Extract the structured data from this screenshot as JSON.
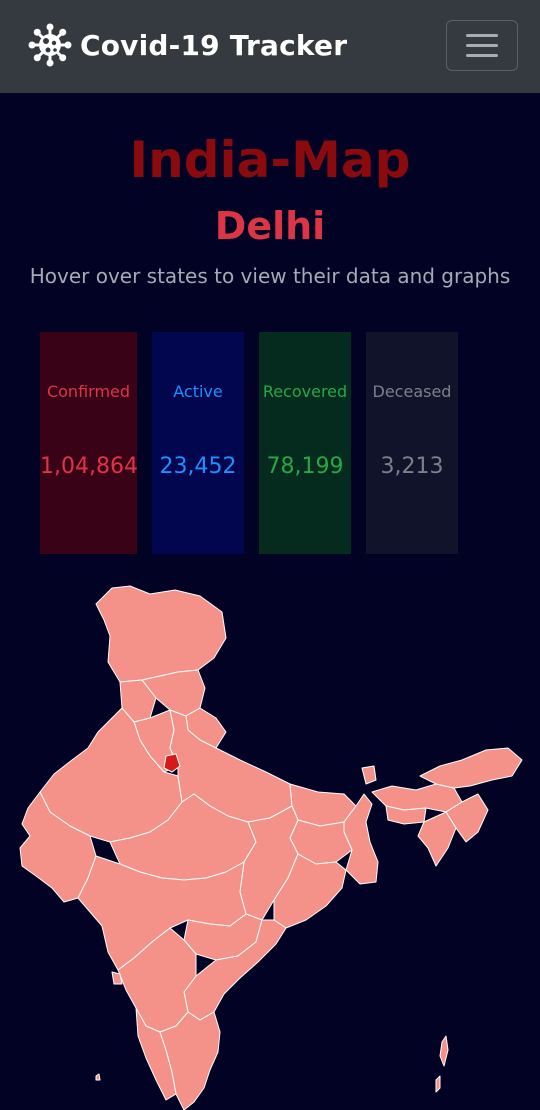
{
  "navbar": {
    "brand": "Covid-19 Tracker",
    "brand_icon": "virus-icon",
    "menu_icon": "hamburger-icon"
  },
  "main": {
    "title": "India-Map",
    "selected_state": "Delhi",
    "hint": "Hover over states to view their data and graphs"
  },
  "stats": {
    "confirmed": {
      "label": "Confirmed",
      "value": "1,04,864",
      "color": "#dc3545"
    },
    "active": {
      "label": "Active",
      "value": "23,452",
      "color": "#1e90ff"
    },
    "recovered": {
      "label": "Recovered",
      "value": "78,199",
      "color": "#28a745"
    },
    "deceased": {
      "label": "Deceased",
      "value": "3,213",
      "color": "#7d8088"
    }
  },
  "map": {
    "fill_color": "#f4928a",
    "highlight_state": "Delhi",
    "highlight_color": "#d61a1a",
    "background": "#020224"
  }
}
